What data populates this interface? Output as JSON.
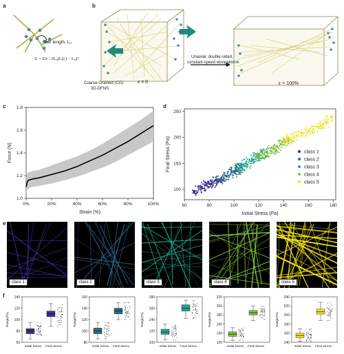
{
  "panels": {
    "a": "a",
    "b": "b",
    "c": "c",
    "d": "d",
    "e": "e",
    "f": "f"
  },
  "panel_a": {
    "fiber_label": "fiber length, L₀",
    "equation": "U = ES / 2L₀(L(ε) − L₀)²"
  },
  "panel_b": {
    "caption_left_1": "Coarse-Grained (CG)",
    "caption_left_2": "3D-DFNS",
    "strain_start": "ε = 0",
    "process_1": "Uniaxial, double-sided,",
    "process_2": "constant-speed elongation",
    "strain_end": "ε = 100%"
  },
  "colors": {
    "class1": "#3b2f8f",
    "class2": "#2f6a8f",
    "class3": "#23a58c",
    "class4": "#7fc241",
    "class5": "#f0e21b",
    "arrow": "#1f8a7a",
    "fiber": "#d8cf7a",
    "node": "#4a8fa0"
  },
  "chart_data": [
    {
      "panel": "c",
      "type": "line",
      "title": "",
      "xlabel": "Strain (%)",
      "ylabel": "Force (N)",
      "xlim": [
        0,
        100
      ],
      "ylim": [
        1.0,
        1.8
      ],
      "x_ticks": [
        "0%",
        "20%",
        "40%",
        "60%",
        "80%",
        "100%"
      ],
      "y_ticks": [
        "1.0",
        "1.2",
        "1.4",
        "1.6",
        "1.8"
      ],
      "x": [
        0,
        1,
        2,
        5,
        10,
        20,
        30,
        40,
        50,
        60,
        70,
        80,
        90,
        100
      ],
      "mean": [
        1.1,
        1.15,
        1.16,
        1.17,
        1.18,
        1.21,
        1.24,
        1.28,
        1.33,
        1.38,
        1.44,
        1.5,
        1.57,
        1.64
      ],
      "lower": [
        1.04,
        1.08,
        1.09,
        1.1,
        1.11,
        1.13,
        1.16,
        1.19,
        1.23,
        1.27,
        1.32,
        1.38,
        1.44,
        1.5
      ],
      "upper": [
        1.18,
        1.22,
        1.23,
        1.24,
        1.25,
        1.29,
        1.33,
        1.37,
        1.42,
        1.48,
        1.55,
        1.62,
        1.69,
        1.77
      ]
    },
    {
      "panel": "d",
      "type": "scatter",
      "title": "",
      "xlabel": "Initial Stress (Pa)",
      "ylabel": "Final Stress (Pa)",
      "xlim": [
        60,
        182
      ],
      "ylim": [
        80,
        255
      ],
      "x_ticks": [
        60,
        80,
        100,
        120,
        140,
        160,
        180
      ],
      "y_ticks": [
        100,
        150,
        200,
        250
      ],
      "legend": "bottom-right",
      "series": [
        {
          "name": "class 1",
          "x": [
            68,
            74,
            78,
            82,
            86,
            90
          ],
          "y": [
            95,
            102,
            108,
            112,
            118,
            122
          ]
        },
        {
          "name": "class 2",
          "x": [
            88,
            94,
            98,
            102,
            106
          ],
          "y": [
            118,
            125,
            132,
            138,
            142
          ]
        },
        {
          "name": "class 3",
          "x": [
            104,
            110,
            116,
            120,
            126
          ],
          "y": [
            140,
            150,
            158,
            165,
            172
          ]
        },
        {
          "name": "class 4",
          "x": [
            120,
            126,
            132,
            138,
            144
          ],
          "y": [
            160,
            170,
            178,
            186,
            193
          ]
        },
        {
          "name": "class 5",
          "x": [
            140,
            148,
            156,
            164,
            172,
            178
          ],
          "y": [
            190,
            200,
            208,
            216,
            225,
            240
          ]
        }
      ]
    },
    {
      "panel": "f",
      "type": "box",
      "ylabel": "Range(Pa)",
      "xcats": [
        "Initial Stress",
        "Final Stress"
      ],
      "plots": [
        {
          "class": "class 1",
          "ylim": [
            60,
            140
          ],
          "y_ticks": [
            60,
            80,
            100,
            120,
            140
          ],
          "initial": {
            "q1": 75,
            "median": 80,
            "q3": 84,
            "min": 66,
            "max": 95
          },
          "final": {
            "q1": 105,
            "median": 110,
            "q3": 115,
            "min": 88,
            "max": 128
          }
        },
        {
          "class": "class 2",
          "ylim": [
            80,
            160
          ],
          "y_ticks": [
            80,
            100,
            120,
            140,
            160
          ],
          "initial": {
            "q1": 95,
            "median": 100,
            "q3": 105,
            "min": 86,
            "max": 115
          },
          "final": {
            "q1": 130,
            "median": 135,
            "q3": 140,
            "min": 120,
            "max": 150
          }
        },
        {
          "class": "class 3",
          "ylim": [
            100,
            180
          ],
          "y_ticks": [
            100,
            120,
            140,
            160,
            180
          ],
          "initial": {
            "q1": 114,
            "median": 118,
            "q3": 123,
            "min": 104,
            "max": 132
          },
          "final": {
            "q1": 155,
            "median": 160,
            "q3": 166,
            "min": 142,
            "max": 174
          }
        },
        {
          "class": "class 4",
          "ylim": [
            120,
            220
          ],
          "y_ticks": [
            120,
            140,
            160,
            180,
            200,
            220
          ],
          "initial": {
            "q1": 133,
            "median": 138,
            "q3": 143,
            "min": 124,
            "max": 152
          },
          "final": {
            "q1": 180,
            "median": 185,
            "q3": 190,
            "min": 168,
            "max": 200
          }
        },
        {
          "class": "class 5",
          "ylim": [
            140,
            240
          ],
          "y_ticks": [
            140,
            160,
            180,
            200,
            220,
            240
          ],
          "initial": {
            "q1": 150,
            "median": 155,
            "q3": 160,
            "min": 142,
            "max": 170
          },
          "final": {
            "q1": 202,
            "median": 207,
            "q3": 213,
            "min": 188,
            "max": 228
          }
        }
      ]
    }
  ],
  "panel_e": {
    "tiles": [
      "class 1",
      "class 2",
      "class 3",
      "class 4",
      "class 5"
    ]
  }
}
